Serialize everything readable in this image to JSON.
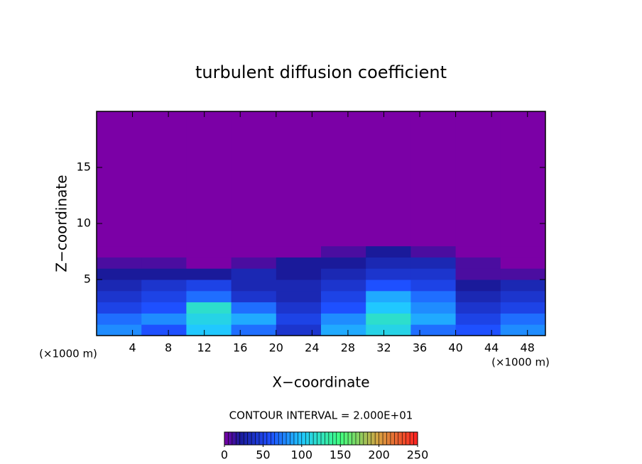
{
  "chart_data": {
    "type": "heatmap",
    "title": "turbulent diffusion coefficient",
    "xlabel": "X−coordinate",
    "ylabel": "Z−coordinate",
    "xunit": "(×1000 m)",
    "note": "CONTOUR INTERVAL = 2.000E+01",
    "xlim": [
      0,
      50
    ],
    "ylim": [
      0,
      20
    ],
    "xticks": [
      4,
      8,
      12,
      16,
      20,
      24,
      28,
      32,
      36,
      40,
      44,
      48
    ],
    "yticks": [
      5,
      10,
      15
    ],
    "x_edges": [
      0,
      5,
      10,
      15,
      20,
      25,
      30,
      35,
      40,
      45,
      50
    ],
    "y_edges": [
      0,
      1,
      2,
      3,
      4,
      5,
      6,
      7,
      8,
      20
    ],
    "z": [
      [
        80,
        60,
        100,
        70,
        40,
        90,
        110,
        70,
        60,
        80
      ],
      [
        70,
        80,
        110,
        90,
        50,
        80,
        120,
        90,
        50,
        70
      ],
      [
        50,
        60,
        120,
        70,
        40,
        60,
        100,
        80,
        40,
        50
      ],
      [
        40,
        50,
        70,
        40,
        30,
        50,
        90,
        70,
        30,
        40
      ],
      [
        30,
        40,
        50,
        30,
        30,
        40,
        60,
        50,
        20,
        30
      ],
      [
        20,
        20,
        20,
        30,
        20,
        30,
        40,
        40,
        10,
        10
      ],
      [
        10,
        10,
        0,
        10,
        20,
        20,
        30,
        30,
        10,
        0
      ],
      [
        0,
        0,
        0,
        0,
        0,
        10,
        20,
        10,
        0,
        0
      ],
      [
        0,
        0,
        0,
        0,
        0,
        0,
        0,
        0,
        0,
        0
      ]
    ],
    "colorscale": [
      [
        0,
        "#7b00a6"
      ],
      [
        20,
        "#1a1a9a"
      ],
      [
        60,
        "#1e50ff"
      ],
      [
        100,
        "#20c8ff"
      ],
      [
        150,
        "#40ff80"
      ],
      [
        200,
        "#d8a040"
      ],
      [
        250,
        "#ff2020"
      ]
    ],
    "clim": [
      0,
      250
    ],
    "cticks": [
      0,
      50,
      100,
      150,
      200,
      250
    ]
  }
}
